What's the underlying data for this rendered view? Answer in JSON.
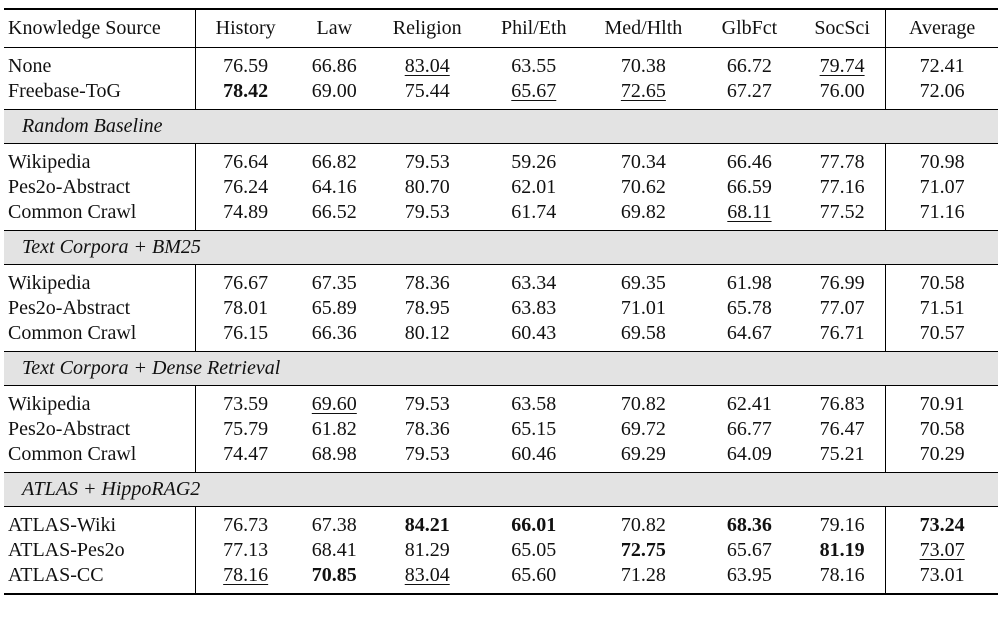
{
  "header": [
    "Knowledge Source",
    "History",
    "Law",
    "Religion",
    "Phil/Eth",
    "Med/Hlth",
    "GlbFct",
    "SocSci",
    "Average"
  ],
  "groups": [
    {
      "title": null,
      "rows": [
        {
          "label": "None",
          "cells": [
            {
              "v": "76.59"
            },
            {
              "v": "66.86"
            },
            {
              "v": "83.04",
              "u": true
            },
            {
              "v": "63.55"
            },
            {
              "v": "70.38"
            },
            {
              "v": "66.72"
            },
            {
              "v": "79.74",
              "u": true
            },
            {
              "v": "72.41"
            }
          ]
        },
        {
          "label": "Freebase-ToG",
          "cells": [
            {
              "v": "78.42",
              "b": true
            },
            {
              "v": "69.00"
            },
            {
              "v": "75.44"
            },
            {
              "v": "65.67",
              "u": true
            },
            {
              "v": "72.65",
              "u": true
            },
            {
              "v": "67.27"
            },
            {
              "v": "76.00"
            },
            {
              "v": "72.06"
            }
          ]
        }
      ]
    },
    {
      "title": "Random Baseline",
      "rows": [
        {
          "label": "Wikipedia",
          "cells": [
            {
              "v": "76.64"
            },
            {
              "v": "66.82"
            },
            {
              "v": "79.53"
            },
            {
              "v": "59.26"
            },
            {
              "v": "70.34"
            },
            {
              "v": "66.46"
            },
            {
              "v": "77.78"
            },
            {
              "v": "70.98"
            }
          ]
        },
        {
          "label": "Pes2o-Abstract",
          "cells": [
            {
              "v": "76.24"
            },
            {
              "v": "64.16"
            },
            {
              "v": "80.70"
            },
            {
              "v": "62.01"
            },
            {
              "v": "70.62"
            },
            {
              "v": "66.59"
            },
            {
              "v": "77.16"
            },
            {
              "v": "71.07"
            }
          ]
        },
        {
          "label": "Common Crawl",
          "cells": [
            {
              "v": "74.89"
            },
            {
              "v": "66.52"
            },
            {
              "v": "79.53"
            },
            {
              "v": "61.74"
            },
            {
              "v": "69.82"
            },
            {
              "v": "68.11",
              "u": true
            },
            {
              "v": "77.52"
            },
            {
              "v": "71.16"
            }
          ]
        }
      ]
    },
    {
      "title": "Text Corpora + BM25",
      "rows": [
        {
          "label": "Wikipedia",
          "cells": [
            {
              "v": "76.67"
            },
            {
              "v": "67.35"
            },
            {
              "v": "78.36"
            },
            {
              "v": "63.34"
            },
            {
              "v": "69.35"
            },
            {
              "v": "61.98"
            },
            {
              "v": "76.99"
            },
            {
              "v": "70.58"
            }
          ]
        },
        {
          "label": "Pes2o-Abstract",
          "cells": [
            {
              "v": "78.01"
            },
            {
              "v": "65.89"
            },
            {
              "v": "78.95"
            },
            {
              "v": "63.83"
            },
            {
              "v": "71.01"
            },
            {
              "v": "65.78"
            },
            {
              "v": "77.07"
            },
            {
              "v": "71.51"
            }
          ]
        },
        {
          "label": "Common Crawl",
          "cells": [
            {
              "v": "76.15"
            },
            {
              "v": "66.36"
            },
            {
              "v": "80.12"
            },
            {
              "v": "60.43"
            },
            {
              "v": "69.58"
            },
            {
              "v": "64.67"
            },
            {
              "v": "76.71"
            },
            {
              "v": "70.57"
            }
          ]
        }
      ]
    },
    {
      "title": "Text Corpora + Dense Retrieval",
      "rows": [
        {
          "label": "Wikipedia",
          "cells": [
            {
              "v": "73.59"
            },
            {
              "v": "69.60",
              "u": true
            },
            {
              "v": "79.53"
            },
            {
              "v": "63.58"
            },
            {
              "v": "70.82"
            },
            {
              "v": "62.41"
            },
            {
              "v": "76.83"
            },
            {
              "v": "70.91"
            }
          ]
        },
        {
          "label": "Pes2o-Abstract",
          "cells": [
            {
              "v": "75.79"
            },
            {
              "v": "61.82"
            },
            {
              "v": "78.36"
            },
            {
              "v": "65.15"
            },
            {
              "v": "69.72"
            },
            {
              "v": "66.77"
            },
            {
              "v": "76.47"
            },
            {
              "v": "70.58"
            }
          ]
        },
        {
          "label": "Common Crawl",
          "cells": [
            {
              "v": "74.47"
            },
            {
              "v": "68.98"
            },
            {
              "v": "79.53"
            },
            {
              "v": "60.46"
            },
            {
              "v": "69.29"
            },
            {
              "v": "64.09"
            },
            {
              "v": "75.21"
            },
            {
              "v": "70.29"
            }
          ]
        }
      ]
    },
    {
      "title": "ATLAS + HippoRAG2",
      "rows": [
        {
          "label": "ATLAS-Wiki",
          "cells": [
            {
              "v": "76.73"
            },
            {
              "v": "67.38"
            },
            {
              "v": "84.21",
              "b": true
            },
            {
              "v": "66.01",
              "b": true
            },
            {
              "v": "70.82"
            },
            {
              "v": "68.36",
              "b": true
            },
            {
              "v": "79.16"
            },
            {
              "v": "73.24",
              "b": true
            }
          ]
        },
        {
          "label": "ATLAS-Pes2o",
          "cells": [
            {
              "v": "77.13"
            },
            {
              "v": "68.41"
            },
            {
              "v": "81.29"
            },
            {
              "v": "65.05"
            },
            {
              "v": "72.75",
              "b": true
            },
            {
              "v": "65.67"
            },
            {
              "v": "81.19",
              "b": true
            },
            {
              "v": "73.07",
              "u": true
            }
          ]
        },
        {
          "label": "ATLAS-CC",
          "cells": [
            {
              "v": "78.16",
              "u": true
            },
            {
              "v": "70.85",
              "b": true
            },
            {
              "v": "83.04",
              "u": true
            },
            {
              "v": "65.60"
            },
            {
              "v": "71.28"
            },
            {
              "v": "63.95"
            },
            {
              "v": "78.16"
            },
            {
              "v": "73.01"
            }
          ]
        }
      ]
    }
  ]
}
